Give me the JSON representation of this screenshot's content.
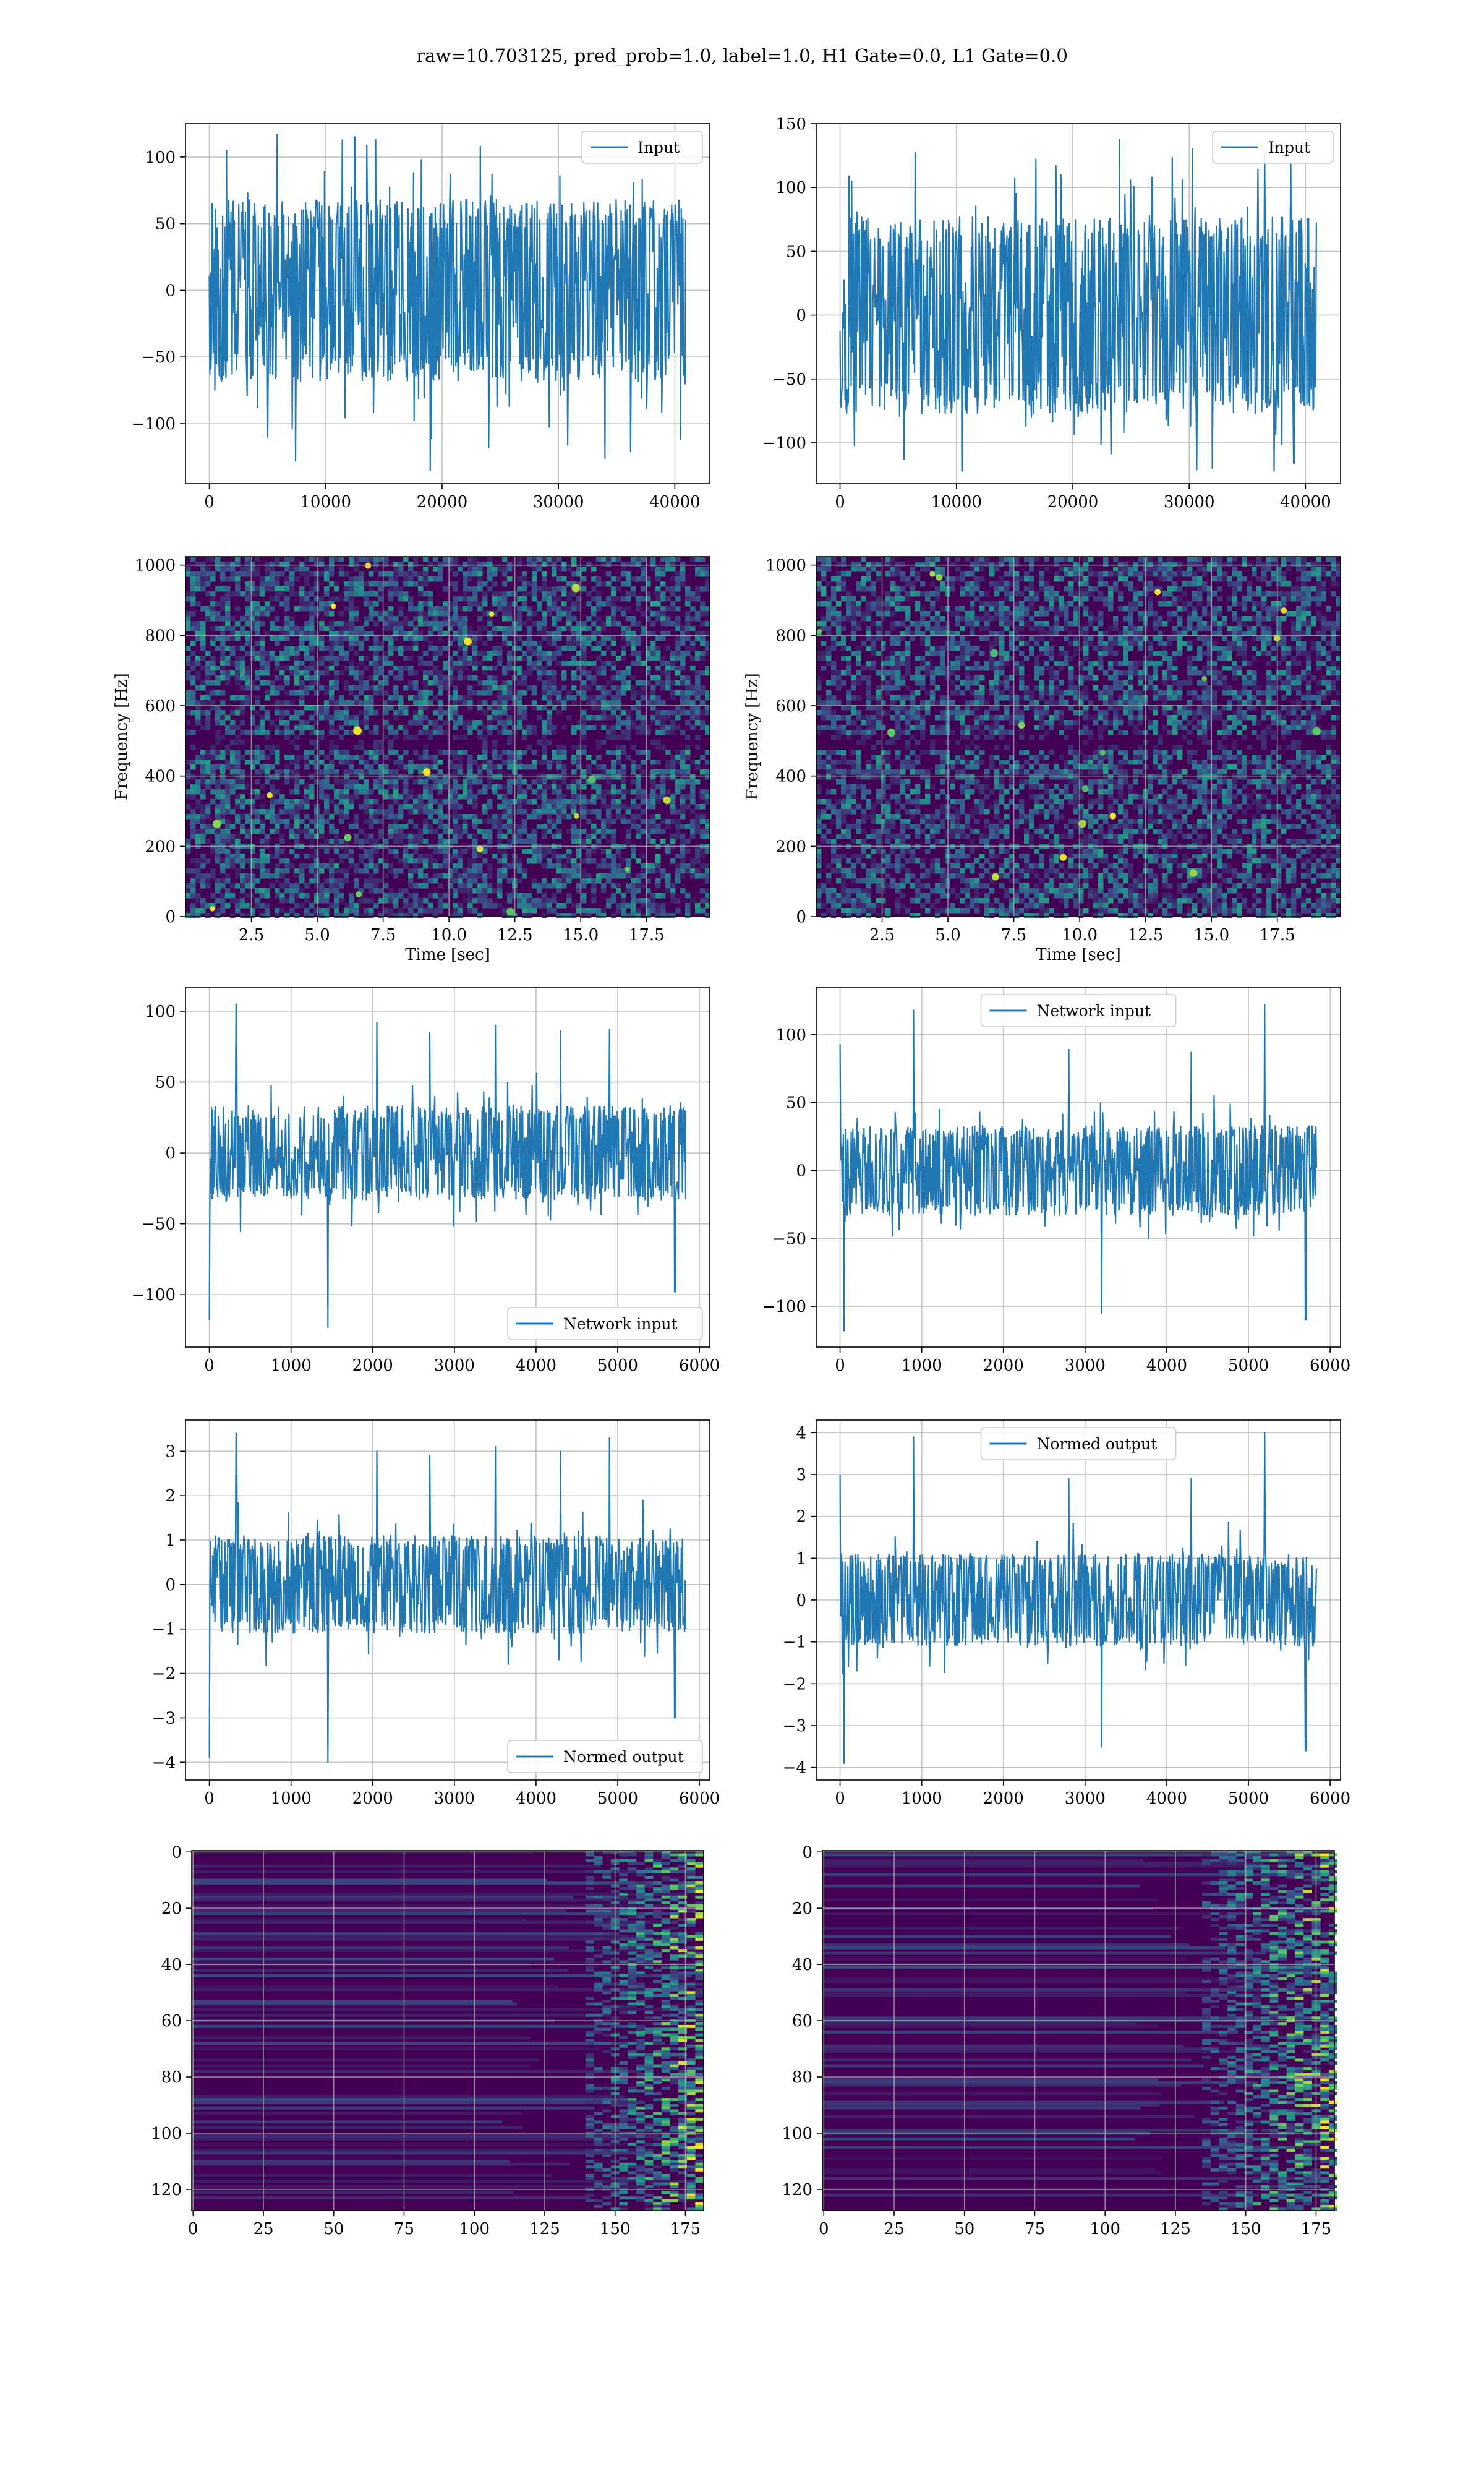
{
  "figure": {
    "suptitle": "raw=10.703125, pred_prob=1.0, label=1.0, H1 Gate=0.0, L1 Gate=0.0",
    "colors": {
      "line": "#1f77b4",
      "grid": "#b0b0b0",
      "viridis_dark": "#440154",
      "viridis_mid": "#21918c",
      "viridis_bright": "#fde725"
    }
  },
  "chart_data": [
    {
      "id": "input-h1",
      "type": "line",
      "legend": "Input",
      "legend_loc": "upper right",
      "grid": true,
      "xlim": [
        -2048,
        43008
      ],
      "ylim": [
        -145,
        125
      ],
      "xticks": [
        0,
        10000,
        20000,
        30000,
        40000
      ],
      "xtick_labels": [
        "0",
        "10000",
        "20000",
        "30000",
        "40000"
      ],
      "yticks": [
        -100,
        -50,
        0,
        50,
        100
      ],
      "ytick_labels": [
        "−100",
        "−50",
        "0",
        "50",
        "100"
      ],
      "series": [
        {
          "x_range": [
            0,
            40960
          ],
          "envelope": [
            -62,
            62
          ],
          "peaks": [
            [
              1500,
              105
            ],
            [
              5000,
              -110
            ],
            [
              7400,
              -128
            ],
            [
              12500,
              115
            ],
            [
              14300,
              113
            ],
            [
              18200,
              98
            ],
            [
              19000,
              -135
            ],
            [
              23300,
              108
            ],
            [
              24000,
              -118
            ],
            [
              30800,
              -116
            ],
            [
              34000,
              -126
            ],
            [
              36200,
              -121
            ],
            [
              40500,
              -112
            ]
          ]
        }
      ]
    },
    {
      "id": "input-l1",
      "type": "line",
      "legend": "Input",
      "legend_loc": "upper right",
      "grid": true,
      "xlim": [
        -2048,
        43008
      ],
      "ylim": [
        -132,
        150
      ],
      "xticks": [
        0,
        10000,
        20000,
        30000,
        40000
      ],
      "xtick_labels": [
        "0",
        "10000",
        "20000",
        "30000",
        "40000"
      ],
      "yticks": [
        -100,
        -50,
        0,
        50,
        100,
        150
      ],
      "ytick_labels": [
        "−100",
        "−50",
        "0",
        "50",
        "100",
        "150"
      ],
      "series": [
        {
          "x_range": [
            0,
            40960
          ],
          "envelope": [
            -70,
            70
          ],
          "peaks": [
            [
              1000,
              105
            ],
            [
              5500,
              -113
            ],
            [
              10500,
              -122
            ],
            [
              15000,
              107
            ],
            [
              19000,
              110
            ],
            [
              24000,
              138
            ],
            [
              26800,
              108
            ],
            [
              29400,
              106
            ],
            [
              32000,
              -120
            ],
            [
              36500,
              127
            ],
            [
              39000,
              -116
            ]
          ]
        }
      ]
    },
    {
      "id": "qt-h1",
      "type": "heatmap",
      "xlabel": "Time [sec]",
      "ylabel": "Frequency [Hz]",
      "grid": true,
      "xlim": [
        0,
        19.9
      ],
      "ylim": [
        0,
        1024
      ],
      "xticks": [
        2.5,
        5.0,
        7.5,
        10.0,
        12.5,
        15.0,
        17.5
      ],
      "xtick_labels": [
        "2.5",
        "5.0",
        "7.5",
        "10.0",
        "12.5",
        "15.0",
        "17.5"
      ],
      "yticks": [
        0,
        200,
        400,
        600,
        800,
        1000
      ],
      "ytick_labels": [
        "0",
        "200",
        "400",
        "600",
        "800",
        "1000"
      ],
      "dark_band_hz": [
        480,
        520
      ],
      "colormap": "viridis"
    },
    {
      "id": "qt-l1",
      "type": "heatmap",
      "xlabel": "Time [sec]",
      "ylabel": "Frequency [Hz]",
      "grid": true,
      "xlim": [
        0,
        19.9
      ],
      "ylim": [
        0,
        1024
      ],
      "xticks": [
        2.5,
        5.0,
        7.5,
        10.0,
        12.5,
        15.0,
        17.5
      ],
      "xtick_labels": [
        "2.5",
        "5.0",
        "7.5",
        "10.0",
        "12.5",
        "15.0",
        "17.5"
      ],
      "yticks": [
        0,
        200,
        400,
        600,
        800,
        1000
      ],
      "ytick_labels": [
        "0",
        "200",
        "400",
        "600",
        "800",
        "1000"
      ],
      "dark_band_hz": [
        480,
        520
      ],
      "colormap": "viridis"
    },
    {
      "id": "netin-h1",
      "type": "line",
      "legend": "Network input",
      "legend_loc": "lower right",
      "grid": true,
      "xlim": [
        -292,
        6128
      ],
      "ylim": [
        -137,
        117
      ],
      "xticks": [
        0,
        1000,
        2000,
        3000,
        4000,
        5000,
        6000
      ],
      "xtick_labels": [
        "0",
        "1000",
        "2000",
        "3000",
        "4000",
        "5000",
        "6000"
      ],
      "yticks": [
        -100,
        -50,
        0,
        50,
        100
      ],
      "ytick_labels": [
        "−100",
        "−50",
        "0",
        "50",
        "100"
      ],
      "series": [
        {
          "x_range": [
            0,
            5836
          ],
          "envelope": [
            -30,
            30
          ],
          "peaks": [
            [
              0,
              -118
            ],
            [
              330,
              105
            ],
            [
              1450,
              -123
            ],
            [
              2050,
              92
            ],
            [
              2700,
              85
            ],
            [
              3500,
              90
            ],
            [
              4300,
              86
            ],
            [
              4900,
              87
            ],
            [
              5700,
              -98
            ]
          ]
        }
      ]
    },
    {
      "id": "netin-l1",
      "type": "line",
      "legend": "Network input",
      "legend_loc": "upper center",
      "grid": true,
      "xlim": [
        -292,
        6128
      ],
      "ylim": [
        -130,
        135
      ],
      "xticks": [
        0,
        1000,
        2000,
        3000,
        4000,
        5000,
        6000
      ],
      "xtick_labels": [
        "0",
        "1000",
        "2000",
        "3000",
        "4000",
        "5000",
        "6000"
      ],
      "yticks": [
        -100,
        -50,
        0,
        50,
        100
      ],
      "ytick_labels": [
        "−100",
        "−50",
        "0",
        "50",
        "100"
      ],
      "series": [
        {
          "x_range": [
            0,
            5836
          ],
          "envelope": [
            -30,
            30
          ],
          "peaks": [
            [
              0,
              93
            ],
            [
              50,
              -118
            ],
            [
              900,
              118
            ],
            [
              2800,
              89
            ],
            [
              3200,
              -105
            ],
            [
              4300,
              87
            ],
            [
              5200,
              122
            ],
            [
              5700,
              -110
            ]
          ]
        }
      ]
    },
    {
      "id": "norm-h1",
      "type": "line",
      "legend": "Normed output",
      "legend_loc": "lower right",
      "grid": true,
      "xlim": [
        -292,
        6128
      ],
      "ylim": [
        -4.4,
        3.7
      ],
      "xticks": [
        0,
        1000,
        2000,
        3000,
        4000,
        5000,
        6000
      ],
      "xtick_labels": [
        "0",
        "1000",
        "2000",
        "3000",
        "4000",
        "5000",
        "6000"
      ],
      "yticks": [
        -4,
        -3,
        -2,
        -1,
        0,
        1,
        2,
        3
      ],
      "ytick_labels": [
        "−4",
        "−3",
        "−2",
        "−1",
        "0",
        "1",
        "2",
        "3"
      ],
      "series": [
        {
          "x_range": [
            0,
            5836
          ],
          "envelope": [
            -1.0,
            1.0
          ],
          "peaks": [
            [
              0,
              -3.9
            ],
            [
              330,
              3.4
            ],
            [
              1450,
              -4.0
            ],
            [
              2050,
              3.0
            ],
            [
              2700,
              2.9
            ],
            [
              3500,
              3.1
            ],
            [
              4300,
              3.0
            ],
            [
              4900,
              3.3
            ],
            [
              5700,
              -3.0
            ]
          ]
        }
      ]
    },
    {
      "id": "norm-l1",
      "type": "line",
      "legend": "Normed output",
      "legend_loc": "upper center",
      "grid": true,
      "xlim": [
        -292,
        6128
      ],
      "ylim": [
        -4.3,
        4.3
      ],
      "xticks": [
        0,
        1000,
        2000,
        3000,
        4000,
        5000,
        6000
      ],
      "xtick_labels": [
        "0",
        "1000",
        "2000",
        "3000",
        "4000",
        "5000",
        "6000"
      ],
      "yticks": [
        -4,
        -3,
        -2,
        -1,
        0,
        1,
        2,
        3,
        4
      ],
      "ytick_labels": [
        "−4",
        "−3",
        "−2",
        "−1",
        "0",
        "1",
        "2",
        "3",
        "4"
      ],
      "series": [
        {
          "x_range": [
            0,
            5836
          ],
          "envelope": [
            -1.0,
            1.0
          ],
          "peaks": [
            [
              0,
              3.0
            ],
            [
              50,
              -3.9
            ],
            [
              900,
              3.9
            ],
            [
              2800,
              2.9
            ],
            [
              3200,
              -3.5
            ],
            [
              4300,
              2.9
            ],
            [
              5200,
              4.0
            ],
            [
              5700,
              -3.6
            ]
          ]
        }
      ]
    },
    {
      "id": "feat-h1",
      "type": "heatmap",
      "grid": true,
      "y_inverted": true,
      "xlim": [
        -0.5,
        181.5
      ],
      "ylim": [
        127.5,
        -0.5
      ],
      "xticks": [
        0,
        25,
        50,
        75,
        100,
        125,
        150,
        175
      ],
      "xtick_labels": [
        "0",
        "25",
        "50",
        "75",
        "100",
        "125",
        "150",
        "175"
      ],
      "yticks": [
        0,
        20,
        40,
        60,
        80,
        100,
        120
      ],
      "ytick_labels": [
        "0",
        "20",
        "40",
        "60",
        "80",
        "100",
        "120"
      ],
      "bright_cols": [
        140,
        181
      ],
      "colormap": "viridis"
    },
    {
      "id": "feat-l1",
      "type": "heatmap",
      "grid": true,
      "y_inverted": true,
      "xlim": [
        -0.5,
        181.5
      ],
      "ylim": [
        127.5,
        -0.5
      ],
      "xticks": [
        0,
        25,
        50,
        75,
        100,
        125,
        150,
        175
      ],
      "xtick_labels": [
        "0",
        "25",
        "50",
        "75",
        "100",
        "125",
        "150",
        "175"
      ],
      "yticks": [
        0,
        20,
        40,
        60,
        80,
        100,
        120
      ],
      "ytick_labels": [
        "0",
        "20",
        "40",
        "60",
        "80",
        "100",
        "120"
      ],
      "bright_cols": [
        135,
        181
      ],
      "colormap": "viridis"
    }
  ]
}
